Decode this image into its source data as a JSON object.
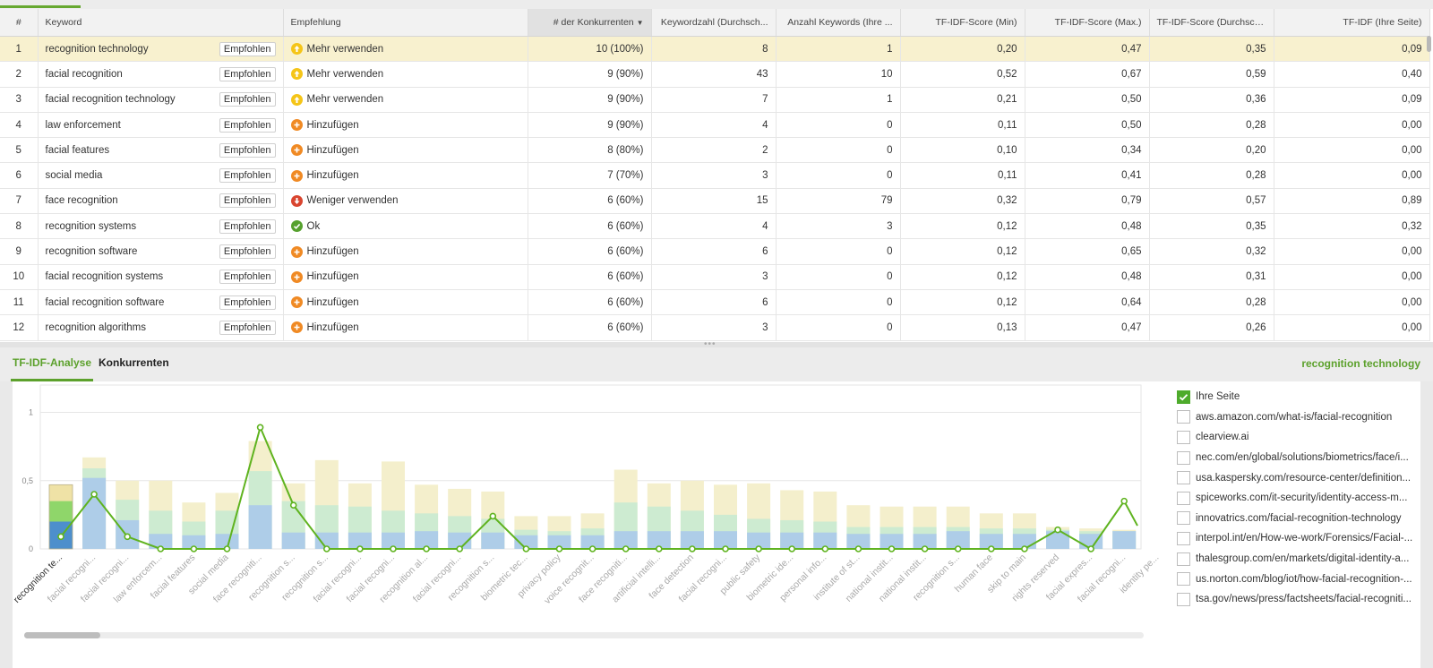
{
  "table": {
    "headers": [
      "#",
      "Keyword",
      "Empfehlung",
      "# der Konkurrenten",
      "Keywordzahl (Durchsch...",
      "Anzahl Keywords (Ihre ...",
      "TF-IDF-Score (Min)",
      "TF-IDF-Score (Max.)",
      "TF-IDF-Score (Durchsch...",
      "TF-IDF (Ihre Seite)"
    ],
    "button_label": "Empfohlen",
    "rows": [
      {
        "n": "1",
        "kw": "recognition technology",
        "rec": "Mehr verwenden",
        "rt": "up",
        "comp": "10 (100%)",
        "avg": "8",
        "yours": "1",
        "min": "0,20",
        "max": "0,47",
        "mean": "0,35",
        "own": "0,09"
      },
      {
        "n": "2",
        "kw": "facial recognition",
        "rec": "Mehr verwenden",
        "rt": "up",
        "comp": "9 (90%)",
        "avg": "43",
        "yours": "10",
        "min": "0,52",
        "max": "0,67",
        "mean": "0,59",
        "own": "0,40"
      },
      {
        "n": "3",
        "kw": "facial recognition technology",
        "rec": "Mehr verwenden",
        "rt": "up",
        "comp": "9 (90%)",
        "avg": "7",
        "yours": "1",
        "min": "0,21",
        "max": "0,50",
        "mean": "0,36",
        "own": "0,09"
      },
      {
        "n": "4",
        "kw": "law enforcement",
        "rec": "Hinzufügen",
        "rt": "add",
        "comp": "9 (90%)",
        "avg": "4",
        "yours": "0",
        "min": "0,11",
        "max": "0,50",
        "mean": "0,28",
        "own": "0,00"
      },
      {
        "n": "5",
        "kw": "facial features",
        "rec": "Hinzufügen",
        "rt": "add",
        "comp": "8 (80%)",
        "avg": "2",
        "yours": "0",
        "min": "0,10",
        "max": "0,34",
        "mean": "0,20",
        "own": "0,00"
      },
      {
        "n": "6",
        "kw": "social media",
        "rec": "Hinzufügen",
        "rt": "add",
        "comp": "7 (70%)",
        "avg": "3",
        "yours": "0",
        "min": "0,11",
        "max": "0,41",
        "mean": "0,28",
        "own": "0,00"
      },
      {
        "n": "7",
        "kw": "face recognition",
        "rec": "Weniger verwenden",
        "rt": "down",
        "comp": "6 (60%)",
        "avg": "15",
        "yours": "79",
        "min": "0,32",
        "max": "0,79",
        "mean": "0,57",
        "own": "0,89"
      },
      {
        "n": "8",
        "kw": "recognition systems",
        "rec": "Ok",
        "rt": "ok",
        "comp": "6 (60%)",
        "avg": "4",
        "yours": "3",
        "min": "0,12",
        "max": "0,48",
        "mean": "0,35",
        "own": "0,32"
      },
      {
        "n": "9",
        "kw": "recognition software",
        "rec": "Hinzufügen",
        "rt": "add",
        "comp": "6 (60%)",
        "avg": "6",
        "yours": "0",
        "min": "0,12",
        "max": "0,65",
        "mean": "0,32",
        "own": "0,00"
      },
      {
        "n": "10",
        "kw": "facial recognition systems",
        "rec": "Hinzufügen",
        "rt": "add",
        "comp": "6 (60%)",
        "avg": "3",
        "yours": "0",
        "min": "0,12",
        "max": "0,48",
        "mean": "0,31",
        "own": "0,00"
      },
      {
        "n": "11",
        "kw": "facial recognition software",
        "rec": "Hinzufügen",
        "rt": "add",
        "comp": "6 (60%)",
        "avg": "6",
        "yours": "0",
        "min": "0,12",
        "max": "0,64",
        "mean": "0,28",
        "own": "0,00"
      },
      {
        "n": "12",
        "kw": "recognition algorithms",
        "rec": "Hinzufügen",
        "rt": "add",
        "comp": "6 (60%)",
        "avg": "3",
        "yours": "0",
        "min": "0,13",
        "max": "0,47",
        "mean": "0,26",
        "own": "0,00"
      }
    ]
  },
  "tabs": {
    "analysis": "TF-IDF-Analyse",
    "competitors": "Konkurrenten",
    "selected_keyword": "recognition technology"
  },
  "legend": [
    {
      "label": "Ihre Seite",
      "checked": true
    },
    {
      "label": "aws.amazon.com/what-is/facial-recognition",
      "checked": false
    },
    {
      "label": "clearview.ai",
      "checked": false
    },
    {
      "label": "nec.com/en/global/solutions/biometrics/face/i...",
      "checked": false
    },
    {
      "label": "usa.kaspersky.com/resource-center/definition...",
      "checked": false
    },
    {
      "label": "spiceworks.com/it-security/identity-access-m...",
      "checked": false
    },
    {
      "label": "innovatrics.com/facial-recognition-technology",
      "checked": false
    },
    {
      "label": "interpol.int/en/How-we-work/Forensics/Facial-...",
      "checked": false
    },
    {
      "label": "thalesgroup.com/en/markets/digital-identity-a...",
      "checked": false
    },
    {
      "label": "us.norton.com/blog/iot/how-facial-recognition-...",
      "checked": false
    },
    {
      "label": "tsa.gov/news/press/factsheets/facial-recogniti...",
      "checked": false
    }
  ],
  "chart_data": {
    "type": "bar",
    "title": "",
    "xlabel": "",
    "ylabel": "",
    "ylim": [
      0,
      1.2
    ],
    "yticks": [
      "0",
      "0,5",
      "1"
    ],
    "categories": [
      "recognition te...",
      "facial recogni...",
      "facial recogni...",
      "law enforcem...",
      "facial features",
      "social media",
      "face recogniti...",
      "recognition s...",
      "recognition s...",
      "facial recogni...",
      "facial recogni...",
      "recognition al...",
      "facial recogni...",
      "recognition s...",
      "biometric tec...",
      "privacy policy",
      "voice recognit...",
      "face recogniti...",
      "artificial intelli...",
      "face detection",
      "facial recogni...",
      "public safety",
      "biometric ide...",
      "personal info...",
      "institute of st...",
      "national instit...",
      "national instit...",
      "recognition s...",
      "human face",
      "skip to main",
      "rights reserved",
      "facial expres...",
      "facial recogni...",
      "identity pe..."
    ],
    "series": [
      {
        "values": [
          0.2,
          0.52,
          0.21,
          0.11,
          0.1,
          0.11,
          0.32,
          0.12,
          0.12,
          0.12,
          0.12,
          0.13,
          0.12,
          0.12,
          0.1,
          0.1,
          0.1,
          0.13,
          0.13,
          0.13,
          0.13,
          0.12,
          0.12,
          0.12,
          0.11,
          0.11,
          0.11,
          0.13,
          0.11,
          0.11,
          0.13,
          0.11,
          0.13,
          0
        ]
      },
      {
        "values": [
          0.35,
          0.59,
          0.36,
          0.28,
          0.2,
          0.28,
          0.57,
          0.35,
          0.32,
          0.31,
          0.28,
          0.26,
          0.24,
          0.22,
          0.14,
          0.13,
          0.15,
          0.34,
          0.31,
          0.28,
          0.25,
          0.22,
          0.21,
          0.2,
          0.16,
          0.16,
          0.16,
          0.16,
          0.15,
          0.15,
          0.14,
          0.13,
          0.13,
          0
        ]
      },
      {
        "values": [
          0.47,
          0.67,
          0.5,
          0.5,
          0.34,
          0.41,
          0.79,
          0.48,
          0.65,
          0.48,
          0.64,
          0.47,
          0.44,
          0.42,
          0.24,
          0.24,
          0.26,
          0.58,
          0.48,
          0.5,
          0.47,
          0.48,
          0.43,
          0.42,
          0.32,
          0.31,
          0.31,
          0.31,
          0.26,
          0.26,
          0.16,
          0.15,
          0.14,
          0
        ]
      },
      {
        "name": "Ihre Seite",
        "values": [
          0.09,
          0.4,
          0.09,
          0,
          0,
          0,
          0.89,
          0.32,
          0,
          0,
          0,
          0,
          0,
          0.24,
          0,
          0,
          0,
          0,
          0,
          0,
          0,
          0,
          0,
          0,
          0,
          0,
          0,
          0,
          0,
          0,
          0.14,
          0,
          0.35,
          0.17
        ]
      }
    ],
    "grid": true,
    "legend": "right"
  },
  "colors": {
    "accent": "#5ca12c",
    "line": "#5fb31f",
    "bar_min": "#aecde8",
    "bar_mean": "#cdebd1",
    "bar_max": "#f4efcc",
    "hl_min": "#4d8fcc",
    "hl_mean": "#8fd66a",
    "hl_max": "#efe2a6"
  }
}
